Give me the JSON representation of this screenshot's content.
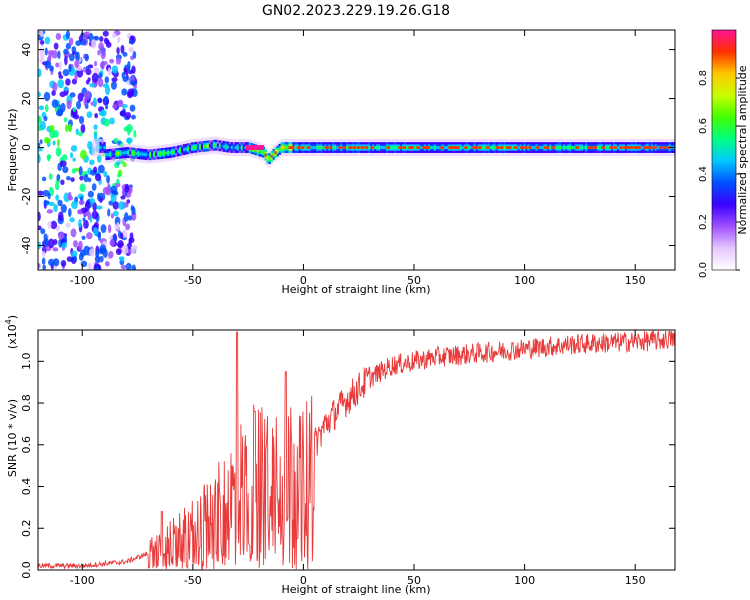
{
  "title": "GN02.2023.229.19.26.G18",
  "colors": {
    "snr_line": "#e83a3a",
    "axis": "#000000",
    "colorbar_stops": [
      "#ffffff",
      "#e6c8ff",
      "#a050ff",
      "#3a00ff",
      "#0050ff",
      "#00c8ff",
      "#00ff80",
      "#40ff00",
      "#c8ff00",
      "#ffc800",
      "#ff3000",
      "#ff1493"
    ]
  },
  "chart_data": [
    {
      "type": "heatmap",
      "title": "GN02.2023.229.19.26.G18",
      "xlabel": "Height of straight line (km)",
      "ylabel": "Frequency (Hz)",
      "xlim": [
        -120,
        168
      ],
      "ylim": [
        -50,
        48
      ],
      "xticks": [
        "-100",
        "-50",
        "0",
        "50",
        "100",
        "150"
      ],
      "yticks": [
        "-40",
        "-20",
        "0",
        "20",
        "40"
      ],
      "colorbar": {
        "label": "Normalized spectral amplitude",
        "range": [
          0,
          1
        ],
        "ticks": [
          "0.0",
          "0.2",
          "0.4",
          "0.6",
          "0.8"
        ]
      },
      "ridge": {
        "description_points": [
          [
            -90,
            -3
          ],
          [
            -80,
            -2
          ],
          [
            -70,
            -3
          ],
          [
            -60,
            -2
          ],
          [
            -50,
            0
          ],
          [
            -40,
            1
          ],
          [
            -33,
            0
          ],
          [
            -25,
            0
          ],
          [
            -18,
            -2
          ],
          [
            -16,
            -5
          ],
          [
            -14,
            -3
          ],
          [
            -10,
            0
          ],
          [
            0,
            0
          ],
          [
            50,
            0
          ],
          [
            100,
            0
          ],
          [
            168,
            0
          ]
        ],
        "scatter_region_x": [
          -120,
          -80
        ]
      }
    },
    {
      "type": "line",
      "xlabel": "Height of straight line (km)",
      "ylabel": "SNR (10 * v/v)",
      "y_multiplier": "(x10",
      "y_multiplier_exp": "4",
      "y_multiplier_close": ")",
      "xlim": [
        -120,
        168
      ],
      "ylim": [
        0,
        1.15
      ],
      "xticks": [
        "-100",
        "-50",
        "0",
        "50",
        "100",
        "150"
      ],
      "yticks": [
        "0.0",
        "0.2",
        "0.4",
        "0.6",
        "0.8",
        "1.0"
      ],
      "series": [
        {
          "trend": {
            "x": [
              -120,
              -100,
              -90,
              -80,
              -75,
              -70,
              -65,
              -60,
              -55,
              -50,
              -45,
              -40,
              -35,
              -30,
              -25,
              -20,
              -15,
              -10,
              -5,
              0,
              5,
              10,
              15,
              20,
              30,
              40,
              50,
              60,
              80,
              100,
              120,
              140,
              160,
              168
            ],
            "y": [
              0.02,
              0.02,
              0.03,
              0.04,
              0.06,
              0.08,
              0.1,
              0.13,
              0.15,
              0.18,
              0.22,
              0.26,
              0.3,
              0.38,
              0.42,
              0.48,
              0.5,
              0.55,
              0.5,
              0.45,
              0.6,
              0.7,
              0.76,
              0.82,
              0.92,
              0.98,
              1.0,
              1.02,
              1.04,
              1.06,
              1.08,
              1.09,
              1.1,
              1.11
            ]
          },
          "spikes": [
            {
              "x": -30,
              "y": 1.14
            },
            {
              "x": -8,
              "y": 0.95
            },
            {
              "x": -22,
              "y": 0.76
            },
            {
              "x": -64,
              "y": 0.28
            }
          ]
        }
      ]
    }
  ]
}
